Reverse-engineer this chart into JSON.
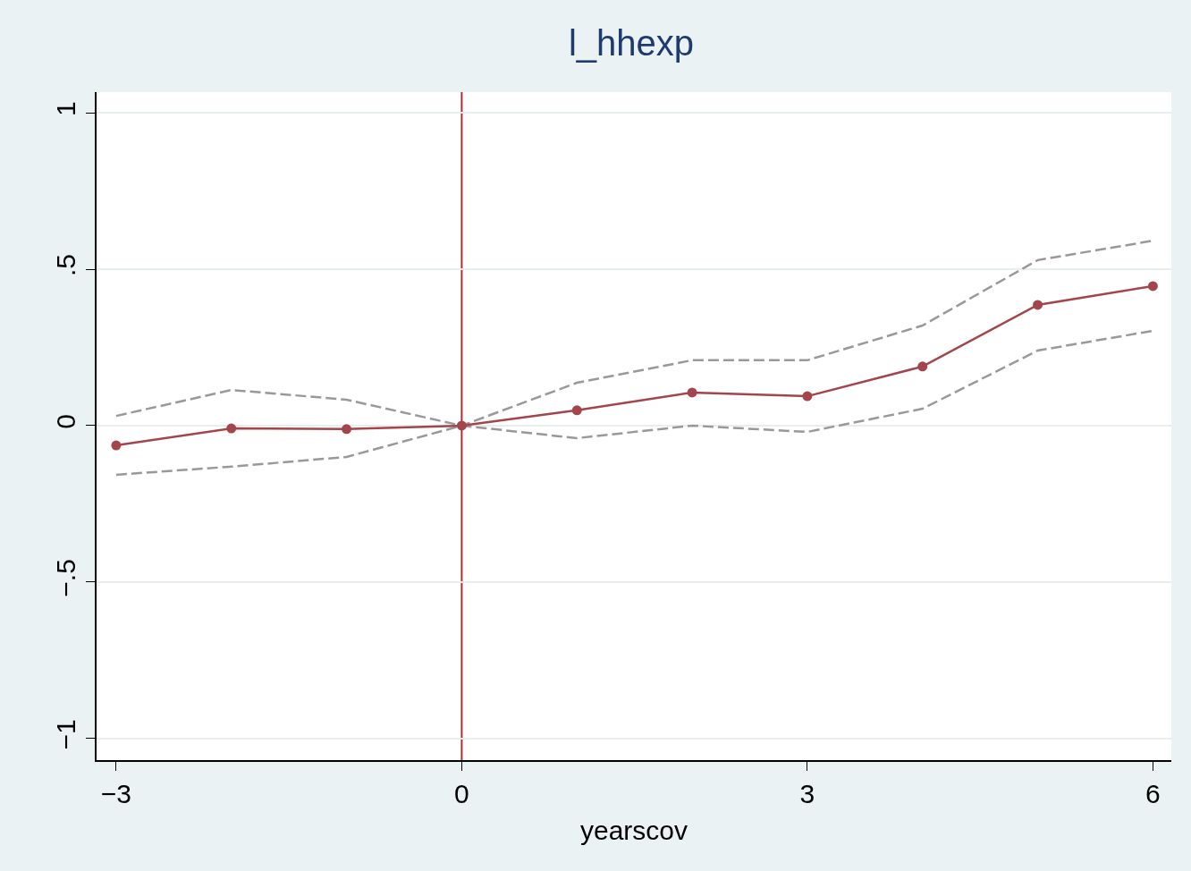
{
  "chart_data": {
    "type": "line",
    "title": "l_hhexp",
    "xlabel": "yearscov",
    "x": [
      -3,
      -2,
      -1,
      0,
      1,
      2,
      3,
      4,
      5,
      6
    ],
    "series": [
      {
        "color": "#999999",
        "line_style": "dashed",
        "marker": "none",
        "values": [
          0.031,
          0.114,
          0.083,
          0,
          0.137,
          0.209,
          0.209,
          0.32,
          0.529,
          0.591
        ]
      },
      {
        "color": "#999999",
        "line_style": "dashed",
        "marker": "none",
        "values": [
          -0.157,
          -0.131,
          -0.1,
          0,
          -0.04,
          0,
          -0.02,
          0.054,
          0.24,
          0.303
        ]
      },
      {
        "color": "#a3454a",
        "line_style": "solid",
        "marker": "circle",
        "values": [
          -0.063,
          -0.009,
          -0.011,
          0,
          0.049,
          0.106,
          0.094,
          0.189,
          0.386,
          0.446
        ]
      }
    ],
    "xlim": [
      -3.17,
      6.16
    ],
    "xticks": [
      {
        "value": -3,
        "label": "−3"
      },
      0,
      3,
      6
    ],
    "ylim": [
      -1.069,
      1.066
    ],
    "yticks": [
      {
        "value": -1,
        "label": "−1"
      },
      {
        "value": -0.5,
        "label": "−.5"
      },
      0,
      {
        "value": 0.5,
        "label": ".5"
      },
      1
    ],
    "grid": "y",
    "ref_lines": [
      {
        "axis": "x",
        "value": 0,
        "color": "#c0272d",
        "line_style": "solid"
      }
    ]
  }
}
